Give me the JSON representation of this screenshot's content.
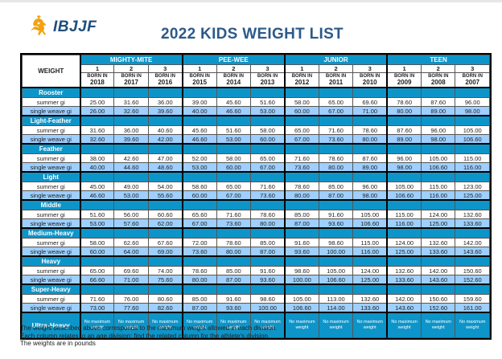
{
  "logo": {
    "text": "IBJJF",
    "icon": "ibjjf-lion-logo-icon",
    "color": "#f4a20f"
  },
  "title": "2022 KIDS WEIGHT LIST",
  "table": {
    "weight_header": "WEIGHT",
    "divisions": [
      {
        "name": "MIGHTY-MITE",
        "columns": [
          {
            "num": "1",
            "born": "BORN IN",
            "year": "2018"
          },
          {
            "num": "2",
            "born": "BORN IN",
            "year": "2017"
          },
          {
            "num": "3",
            "born": "BORN IN",
            "year": "2016"
          }
        ]
      },
      {
        "name": "PEE-WEE",
        "columns": [
          {
            "num": "1",
            "born": "BORN IN",
            "year": "2015"
          },
          {
            "num": "2",
            "born": "BORN IN",
            "year": "2014"
          },
          {
            "num": "3",
            "born": "BORN IN",
            "year": "2013"
          }
        ]
      },
      {
        "name": "JUNIOR",
        "columns": [
          {
            "num": "1",
            "born": "BORN IN",
            "year": "2012"
          },
          {
            "num": "2",
            "born": "BORN IN",
            "year": "2011"
          },
          {
            "num": "3",
            "born": "BORN IN",
            "year": "2010"
          }
        ]
      },
      {
        "name": "TEEN",
        "columns": [
          {
            "num": "1",
            "born": "BORN IN",
            "year": "2009"
          },
          {
            "num": "2",
            "born": "BORN IN",
            "year": "2008"
          },
          {
            "num": "3",
            "born": "BORN IN",
            "year": "2007"
          }
        ]
      }
    ],
    "summer_label": "summer gi",
    "single_weave_label": "single weave gi",
    "categories": [
      {
        "name": "Rooster",
        "summer": [
          "25.00",
          "31.60",
          "36.00",
          "39.00",
          "45.60",
          "51.60",
          "58.00",
          "65.00",
          "69.60",
          "78.60",
          "87.60",
          "96.00"
        ],
        "single_weave": [
          "26.00",
          "32.60",
          "39.60",
          "40.00",
          "46.60",
          "53.00",
          "60.00",
          "67.00",
          "71.00",
          "80.00",
          "89.00",
          "98.00"
        ]
      },
      {
        "name": "Light-Feather",
        "summer": [
          "31.60",
          "36.00",
          "40.60",
          "45.60",
          "51.60",
          "58.00",
          "65.00",
          "71.60",
          "78.60",
          "87.60",
          "96.00",
          "105.00"
        ],
        "single_weave": [
          "32.60",
          "39.60",
          "42.00",
          "46.60",
          "53.00",
          "60.00",
          "67.00",
          "73.60",
          "80.00",
          "89.00",
          "98.00",
          "106.60"
        ]
      },
      {
        "name": "Feather",
        "summer": [
          "38.00",
          "42.60",
          "47.00",
          "52.00",
          "58.00",
          "65.00",
          "71.60",
          "78.60",
          "87.60",
          "96.00",
          "105.00",
          "115.00"
        ],
        "single_weave": [
          "40.00",
          "44.60",
          "48.60",
          "53.00",
          "60.00",
          "67.00",
          "73.60",
          "80.00",
          "89.00",
          "98.00",
          "106.60",
          "116.00"
        ]
      },
      {
        "name": "Light",
        "summer": [
          "45.00",
          "49.00",
          "54.00",
          "58.60",
          "65.00",
          "71.60",
          "78.60",
          "85.00",
          "96.00",
          "105.00",
          "115.00",
          "123.00"
        ],
        "single_weave": [
          "46.60",
          "53.00",
          "55.60",
          "60.00",
          "67.00",
          "73.60",
          "80.00",
          "87.00",
          "98.00",
          "106.60",
          "116.00",
          "125.00"
        ]
      },
      {
        "name": "Middle",
        "summer": [
          "51.60",
          "56.00",
          "60.60",
          "65.60",
          "71.60",
          "78.60",
          "85.00",
          "91.60",
          "105.00",
          "115.00",
          "124.00",
          "132.60"
        ],
        "single_weave": [
          "53.00",
          "57.60",
          "62.00",
          "67.00",
          "73.60",
          "80.00",
          "87.00",
          "93.60",
          "106.60",
          "116.00",
          "125.00",
          "133.60"
        ]
      },
      {
        "name": "Medium-Heavy",
        "summer": [
          "58.00",
          "62.60",
          "67.60",
          "72.00",
          "78.60",
          "85.00",
          "91.60",
          "98.60",
          "115.00",
          "124.00",
          "132.60",
          "142.00"
        ],
        "single_weave": [
          "60.00",
          "64.00",
          "69.00",
          "73.60",
          "80.00",
          "87.00",
          "93.60",
          "100.00",
          "116.00",
          "125.00",
          "133.60",
          "143.60"
        ]
      },
      {
        "name": "Heavy",
        "summer": [
          "65.00",
          "69.60",
          "74.00",
          "78.60",
          "85.00",
          "91.60",
          "98.60",
          "105.00",
          "124.00",
          "132.60",
          "142.00",
          "150.60"
        ],
        "single_weave": [
          "66.60",
          "71.00",
          "75.60",
          "80.00",
          "87.00",
          "93.60",
          "100.00",
          "106.60",
          "125.00",
          "133.60",
          "143.60",
          "152.60"
        ]
      },
      {
        "name": "Super-Heavy",
        "summer": [
          "71.60",
          "76.00",
          "80.60",
          "85.00",
          "91.60",
          "98.60",
          "105.00",
          "113.00",
          "132.60",
          "142.00",
          "150.60",
          "159.60"
        ],
        "single_weave": [
          "73.00",
          "77.60",
          "82.60",
          "87.00",
          "93.60",
          "100.00",
          "106.60",
          "114.00",
          "133.60",
          "143.60",
          "152.60",
          "161.00"
        ]
      }
    ],
    "ultra_heavy": {
      "name": "Ultra-Heavy",
      "value": "No maximum weight"
    }
  },
  "notes": [
    "The weight described above corresponds to the maximum weight allowed in each division.",
    "Each column relates to an age division; find the related column for the athlete's division.",
    "The weights are in pounds"
  ]
}
